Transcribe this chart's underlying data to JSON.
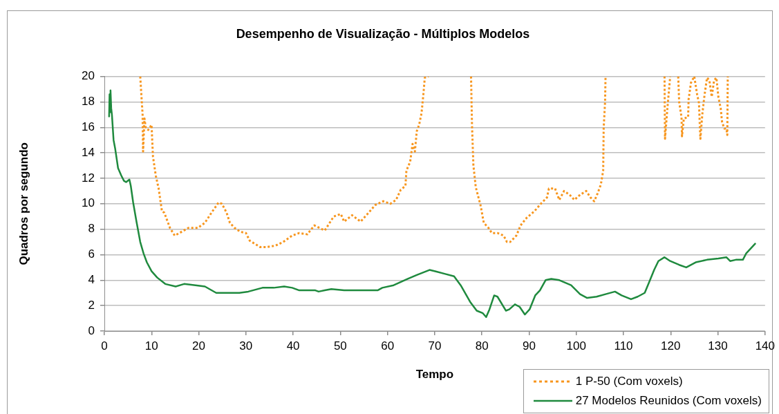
{
  "chart_data": {
    "type": "line",
    "title": "Desempenho de Visualização - Múltiplos Modelos",
    "xlabel": "Tempo",
    "ylabel": "Quadros por segundo",
    "xlim": [
      0,
      140
    ],
    "xticks": [
      0,
      10,
      20,
      30,
      40,
      50,
      60,
      70,
      80,
      90,
      100,
      110,
      120,
      130,
      140
    ],
    "ylim": [
      0,
      20
    ],
    "yticks": [
      0,
      2,
      4,
      6,
      8,
      10,
      12,
      14,
      16,
      18,
      20
    ],
    "grid": "y",
    "legend": "bottom right",
    "marker": "none",
    "series": [
      {
        "name": "1 P-50 (Com voxels)",
        "color": "#f7961e",
        "line_style": "dotted",
        "x": [
          7.6,
          8.1,
          8.2,
          8.5,
          8.8,
          9.3,
          10.0,
          10.1,
          10.3,
          10.9,
          11.5,
          12.2,
          12.7,
          13.9,
          14.9,
          15.9,
          17.8,
          19.8,
          21.3,
          22.7,
          24.2,
          24.9,
          25.9,
          26.6,
          27.6,
          28.8,
          30.0,
          30.8,
          33.0,
          34.4,
          36.2,
          37.9,
          39.8,
          41.3,
          43.0,
          44.5,
          46.7,
          48.6,
          50.1,
          50.8,
          52.5,
          54.3,
          56.0,
          57.4,
          59.1,
          60.6,
          61.8,
          62.8,
          63.8,
          64.0,
          64.8,
          65.3,
          65.8,
          66.2,
          66.7,
          67.2,
          67.6,
          67.9,
          68.7,
          73.0,
          77.7,
          77.9,
          78.2,
          78.7,
          79.7,
          80.4,
          81.4,
          82.1,
          83.3,
          84.6,
          85.3,
          86.0,
          87.3,
          88.2,
          89.5,
          91.1,
          92.5,
          93.8,
          94.2,
          95.5,
          96.4,
          97.4,
          98.6,
          99.6,
          100.8,
          102.1,
          103.0,
          103.8,
          104.5,
          105.2,
          105.7,
          105.8,
          106.1,
          106.2,
          112.0,
          118.7,
          118.8,
          119.2,
          119.4,
          119.9,
          120.8,
          121.6,
          121.8,
          122.3,
          122.4,
          122.8,
          123.7,
          123.8,
          124.3,
          125.0,
          125.6,
          126.0,
          126.2,
          126.3,
          126.7,
          127.0,
          127.2,
          127.7,
          128.2,
          128.7,
          129.2,
          129.7,
          130.1,
          130.6,
          130.9,
          131.4,
          131.8,
          132.0,
          132.1
        ],
        "values": [
          20,
          17.0,
          14.1,
          16.7,
          15.9,
          15.8,
          16.2,
          15.3,
          13.7,
          12.2,
          11.2,
          9.4,
          9.3,
          8.1,
          7.5,
          7.7,
          8.1,
          8.1,
          8.5,
          9.3,
          10.1,
          10.0,
          9.3,
          8.5,
          8.1,
          7.8,
          7.7,
          7.1,
          6.6,
          6.6,
          6.7,
          7.0,
          7.5,
          7.7,
          7.6,
          8.3,
          7.9,
          9.0,
          9.2,
          8.6,
          9.1,
          8.6,
          9.3,
          9.9,
          10.2,
          10.0,
          10.3,
          11.1,
          11.4,
          12.6,
          13.3,
          14.7,
          14.1,
          15.7,
          16.2,
          17.1,
          18.6,
          19.9,
          20,
          null,
          20,
          16.2,
          13.0,
          11.3,
          9.9,
          8.5,
          8.1,
          7.7,
          7.7,
          7.5,
          7.0,
          7.0,
          7.5,
          8.3,
          8.9,
          9.4,
          10.0,
          10.5,
          11.2,
          11.2,
          10.3,
          11.0,
          10.7,
          10.3,
          10.7,
          11.0,
          10.5,
          10.2,
          10.8,
          11.5,
          12.6,
          15.9,
          18.0,
          20,
          null,
          20,
          15.1,
          17.0,
          17.9,
          20,
          null,
          20,
          18.0,
          16.8,
          15.3,
          16.7,
          16.8,
          18.2,
          19.5,
          20,
          18.6,
          17.9,
          15.9,
          15.1,
          17.0,
          18.0,
          18.6,
          19.9,
          19.7,
          18.4,
          19.7,
          19.9,
          18.4,
          17.5,
          16.4,
          15.9,
          15.9,
          15.4,
          20
        ]
      },
      {
        "name": "27 Modelos Reunidos (Com voxels)",
        "color": "#1f8a3e",
        "line_style": "solid",
        "x": [
          1.0,
          1.1,
          1.2,
          1.3,
          1.45,
          1.6,
          1.95,
          2.3,
          2.9,
          3.6,
          4.15,
          4.6,
          5.3,
          5.6,
          6.1,
          6.8,
          7.6,
          8.3,
          9.0,
          10.0,
          11.2,
          12.9,
          15.1,
          16.9,
          19.3,
          21.3,
          23.7,
          25.2,
          28.6,
          30.5,
          33.5,
          35.9,
          38.1,
          39.8,
          41.3,
          44.7,
          45.4,
          46.7,
          48.1,
          50.8,
          53.5,
          57.9,
          58.9,
          61.3,
          64.3,
          66.2,
          68.9,
          70.1,
          72.1,
          74.1,
          75.5,
          77.5,
          78.9,
          80.2,
          80.9,
          81.6,
          82.6,
          83.3,
          85.1,
          85.8,
          87.0,
          88.0,
          89.1,
          90.1,
          91.3,
          92.3,
          93.5,
          94.7,
          96.4,
          98.9,
          100.8,
          102.3,
          104.3,
          106.2,
          108.2,
          109.6,
          111.6,
          113.0,
          114.5,
          115.5,
          116.5,
          117.4,
          118.7,
          119.9,
          121.8,
          123.3,
          125.3,
          127.7,
          130.1,
          131.8,
          132.6,
          133.8,
          135.3,
          136.0,
          138.0
        ],
        "values": [
          16.8,
          18.6,
          17.2,
          18.9,
          17.5,
          17.0,
          15.0,
          14.3,
          12.8,
          12.2,
          11.8,
          11.7,
          11.9,
          11.4,
          10.1,
          8.6,
          7.0,
          6.1,
          5.4,
          4.7,
          4.2,
          3.7,
          3.5,
          3.7,
          3.6,
          3.5,
          3.0,
          3.0,
          3.0,
          3.1,
          3.4,
          3.4,
          3.5,
          3.4,
          3.2,
          3.2,
          3.1,
          3.2,
          3.3,
          3.2,
          3.2,
          3.2,
          3.4,
          3.6,
          4.1,
          4.4,
          4.8,
          4.7,
          4.5,
          4.3,
          3.6,
          2.3,
          1.6,
          1.4,
          1.1,
          1.7,
          2.8,
          2.7,
          1.6,
          1.7,
          2.1,
          1.9,
          1.3,
          1.7,
          2.8,
          3.2,
          4.0,
          4.1,
          4.0,
          3.6,
          2.9,
          2.6,
          2.7,
          2.9,
          3.1,
          2.8,
          2.5,
          2.7,
          3.0,
          3.9,
          4.8,
          5.5,
          5.8,
          5.5,
          5.2,
          5.0,
          5.4,
          5.6,
          5.7,
          5.8,
          5.5,
          5.6,
          5.6,
          6.1,
          6.9
        ]
      }
    ]
  }
}
